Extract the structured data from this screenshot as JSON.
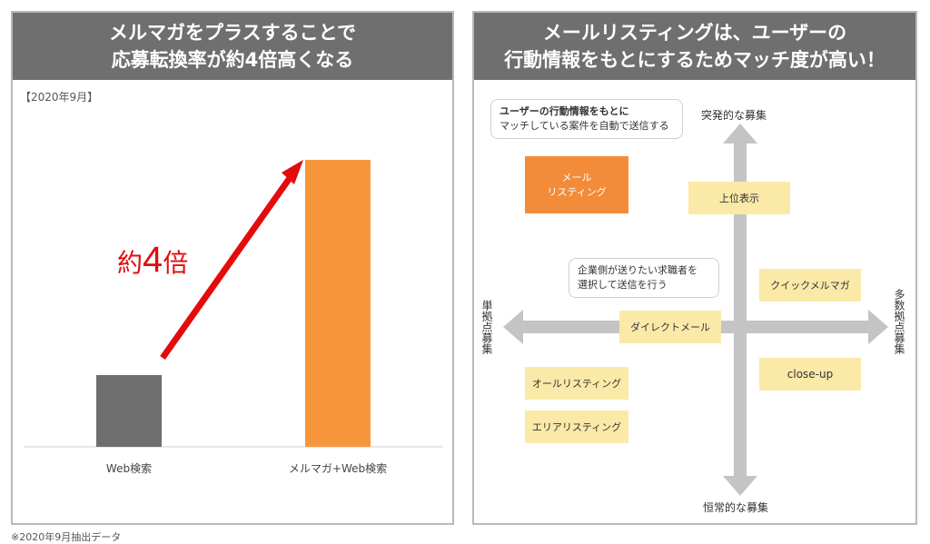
{
  "left": {
    "title_line1": "メルマガをプラスすることで",
    "title_line2": "応募転換率が約4倍高くなる",
    "date_note": "【2020年9月】",
    "annotation_prefix": "約",
    "annotation_number": "4",
    "annotation_suffix": "倍"
  },
  "chart_data": {
    "type": "bar",
    "categories": [
      "Web検索",
      "メルマガ+Web検索"
    ],
    "values": [
      1,
      4
    ],
    "title": "応募転換率が約4倍高くなる",
    "xlabel": "",
    "ylabel": "",
    "grid": false,
    "colors": [
      "#6e6e6e",
      "#f7963d"
    ]
  },
  "right": {
    "title_line1": "メールリスティングは、ユーザーの",
    "title_line2": "行動情報をもとにするためマッチ度が高い！",
    "axis_top": "突発的な募集",
    "axis_bottom": "恒常的な募集",
    "axis_left": "単拠点募集",
    "axis_right": "多数拠点募集",
    "bubble1_bold": "ユーザーの行動情報をもとに",
    "bubble1_text": "マッチしている案件を自動で送信する",
    "bubble2_line1": "企業側が送りたい求職者を",
    "bubble2_line2": "選択して送信を行う",
    "mail_listing_line1": "メール",
    "mail_listing_line2": "リスティング",
    "boxes": {
      "top_display": "上位表示",
      "quick_mailmag": "クイックメルマガ",
      "direct_mail": "ダイレクトメール",
      "close_up": "close-up",
      "all_listing": "オールリスティング",
      "area_listing": "エリアリスティング"
    },
    "colors": {
      "accent": "#f28c3a",
      "box": "#fbe9a8",
      "arrow": "#c4c4c4"
    }
  },
  "footnote": "※2020年9月抽出データ"
}
